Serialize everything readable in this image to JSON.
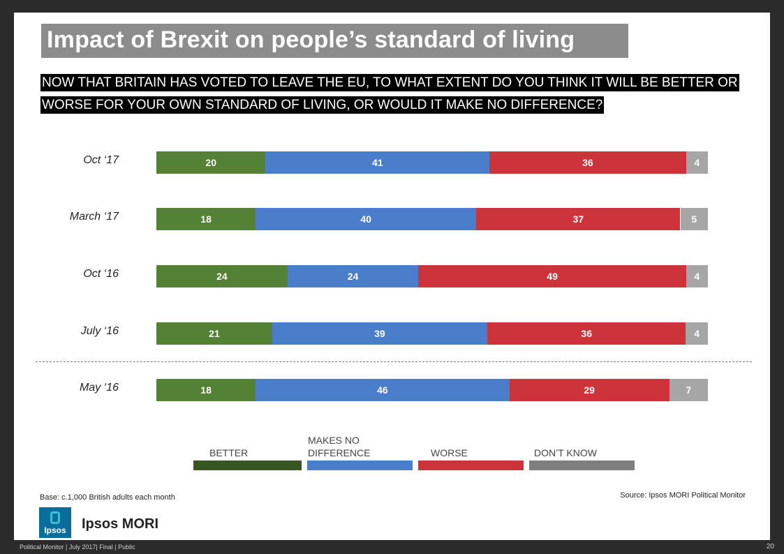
{
  "title": "Impact of Brexit on people’s standard of living",
  "question": "NOW THAT BRITAIN HAS VOTED TO LEAVE THE EU, TO WHAT EXTENT DO YOU THINK IT WILL BE BETTER OR WORSE FOR YOUR OWN STANDARD OF LIVING, OR WOULD IT MAKE NO DIFFERENCE?",
  "base_note": "Base: c.1,000 British adults each month",
  "source_note": "Source: Ipsos MORI Political Monitor",
  "brand": {
    "logo_text": "Ipsos",
    "name": "Ipsos MORI"
  },
  "footer": {
    "left": "Political Monitor | July 2017| Final | Public",
    "page": "20"
  },
  "legend_label_lines": [
    [
      "BETTER"
    ],
    [
      "MAKES NO",
      "DIFFERENCE"
    ],
    [
      "WORSE"
    ],
    [
      "DON’T KNOW"
    ]
  ],
  "chart_data": {
    "type": "bar",
    "orientation": "horizontal",
    "stacked": true,
    "categories": [
      "Oct ‘17",
      "March ‘17",
      "Oct ‘16",
      "July ‘16",
      "May ‘16"
    ],
    "series": [
      {
        "name": "BETTER",
        "values": [
          20,
          18,
          24,
          21,
          18
        ],
        "color": "#538135",
        "legend_color": "#375623"
      },
      {
        "name": "MAKES NO DIFFERENCE",
        "values": [
          41,
          40,
          24,
          39,
          46
        ],
        "color": "#4a7ecb",
        "legend_color": "#4a7ecb"
      },
      {
        "name": "WORSE",
        "values": [
          36,
          37,
          49,
          36,
          29
        ],
        "color": "#cc333b",
        "legend_color": "#cc333b"
      },
      {
        "name": "DON’T KNOW",
        "values": [
          4,
          5,
          4,
          4,
          7
        ],
        "color": "#a6a6a6",
        "legend_color": "#7f7f7f"
      }
    ],
    "legend_position": "bottom",
    "divider_after_category": "July ‘16",
    "grid": false
  }
}
